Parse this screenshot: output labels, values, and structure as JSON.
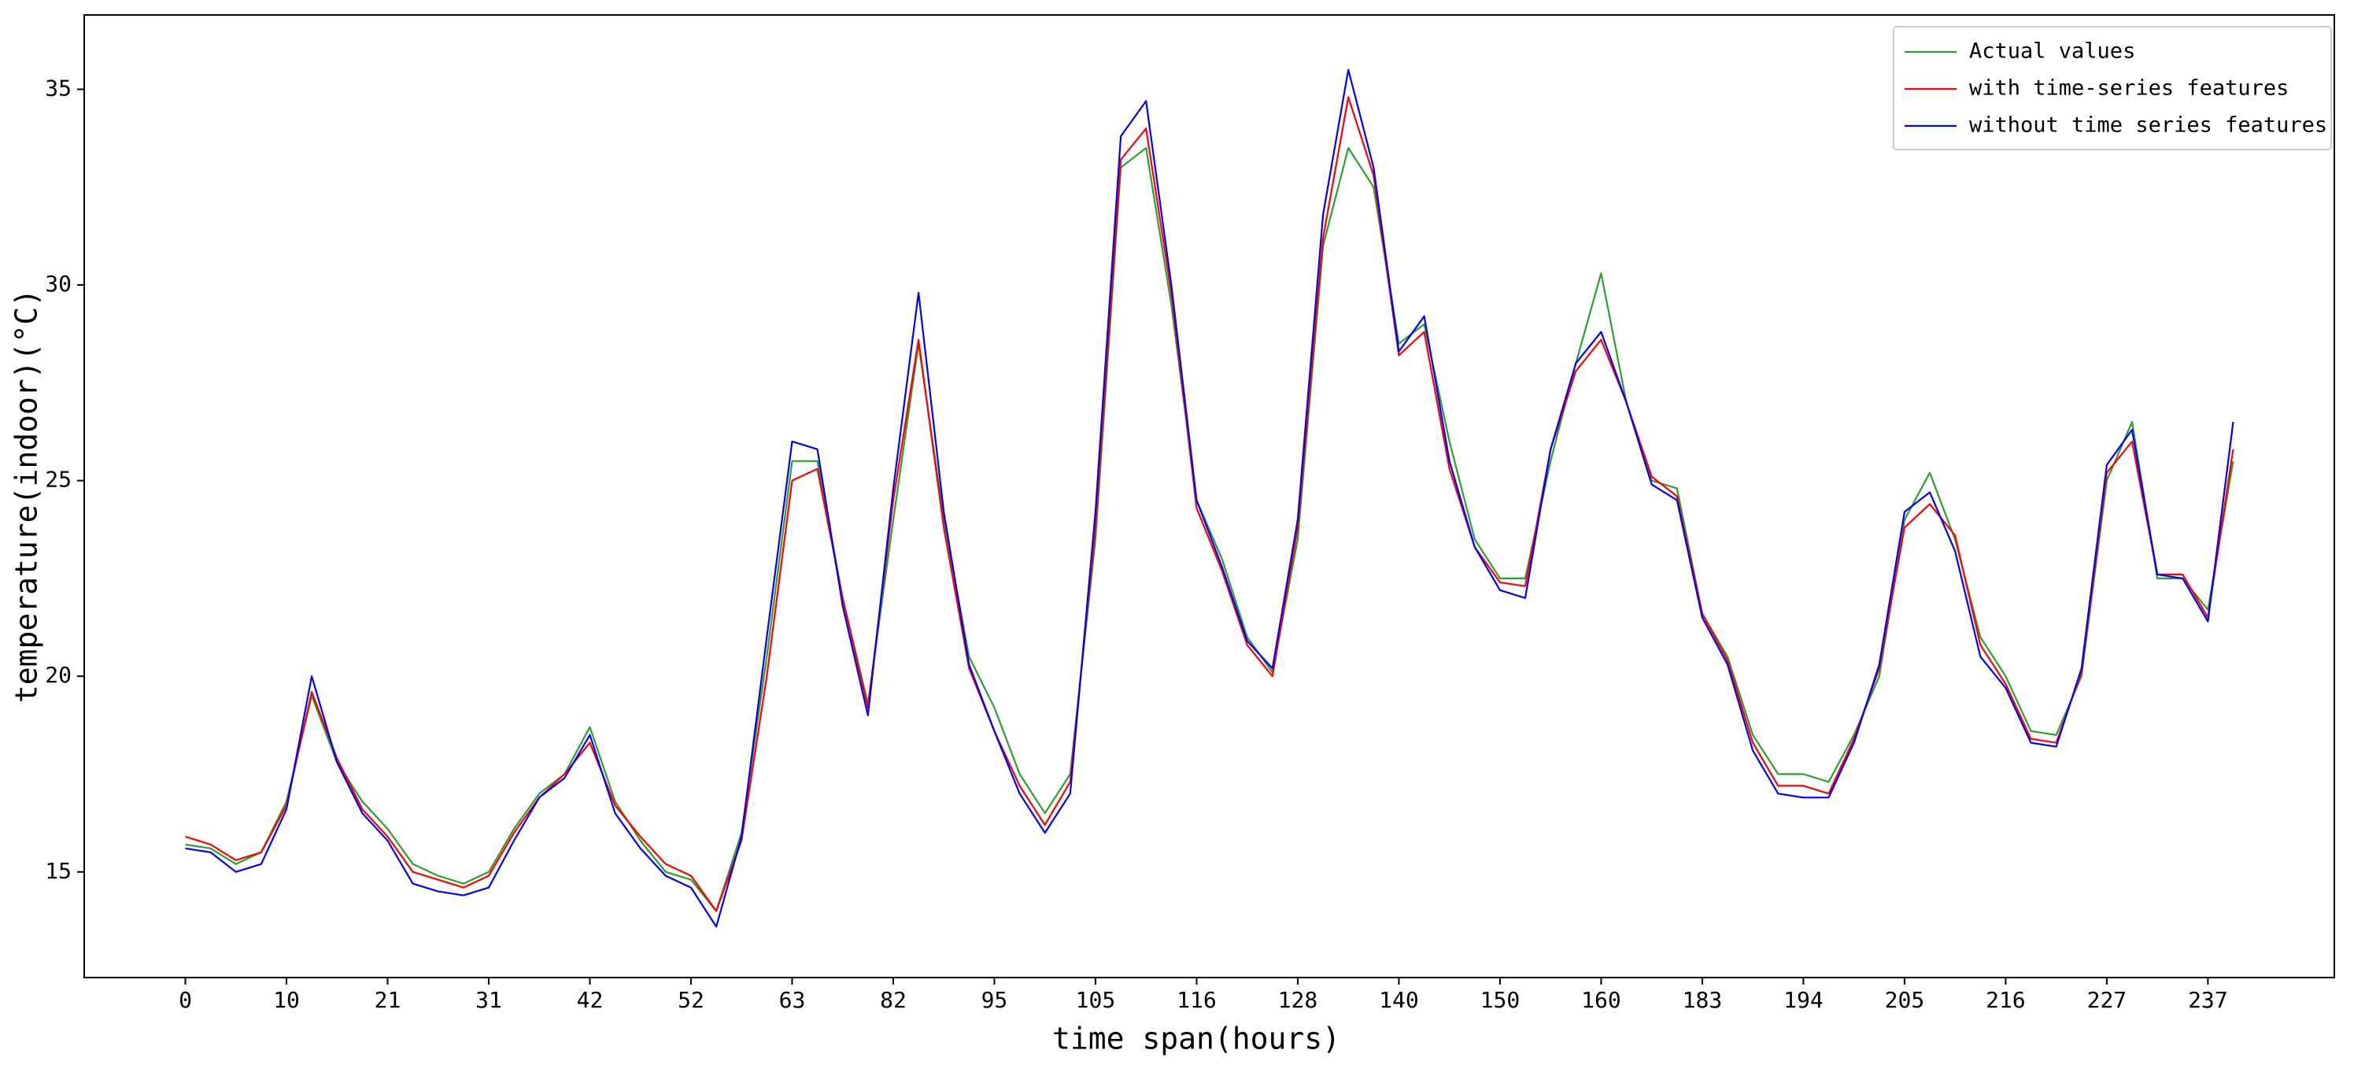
{
  "chart_data": {
    "type": "line",
    "x_label": "time span(hours)",
    "y_label": "temperature(indoor)(°C)",
    "x": [
      0,
      3,
      6,
      9,
      12,
      15,
      18,
      21,
      24,
      27,
      30,
      33,
      36,
      39,
      42,
      45,
      48,
      51,
      54,
      57,
      60,
      63,
      66,
      69,
      72,
      75,
      78,
      81,
      84,
      87,
      90,
      93,
      96,
      99,
      102,
      105,
      108,
      111,
      114,
      117,
      120,
      123,
      126,
      129,
      132,
      135,
      138,
      141,
      144,
      147,
      150,
      153,
      156,
      159,
      162,
      165,
      168,
      171,
      174,
      177,
      180,
      183,
      186,
      189,
      192,
      195,
      198,
      201,
      204,
      207,
      210,
      213,
      216,
      219,
      222,
      225,
      228,
      231,
      234,
      237,
      240,
      243
    ],
    "series": [
      {
        "name": "Actual values",
        "color": "#2ca02c",
        "values": [
          15.7,
          15.6,
          15.2,
          15.5,
          16.8,
          19.5,
          17.8,
          16.8,
          16.1,
          15.2,
          14.9,
          14.7,
          15.0,
          16.1,
          17.0,
          17.5,
          18.7,
          16.8,
          15.8,
          15.0,
          14.8,
          14.0,
          16.0,
          20.5,
          25.5,
          25.5,
          22.0,
          19.3,
          24.0,
          28.5,
          24.0,
          20.5,
          19.2,
          17.5,
          16.5,
          17.5,
          23.5,
          33.0,
          33.5,
          29.5,
          24.5,
          23.0,
          21.0,
          20.1,
          23.5,
          31.0,
          33.5,
          32.5,
          28.5,
          29.0,
          26.0,
          23.5,
          22.5,
          22.5,
          25.5,
          28.0,
          30.3,
          27.0,
          25.0,
          24.8,
          21.6,
          20.5,
          18.5,
          17.5,
          17.5,
          17.3,
          18.5,
          20.0,
          24.0,
          25.2,
          23.5,
          21.0,
          20.0,
          18.6,
          18.5,
          20.0,
          25.0,
          26.5,
          22.5,
          22.5,
          21.7,
          25.5
        ]
      },
      {
        "name": "with time-series features",
        "color": "#ff0000",
        "values": [
          15.9,
          15.7,
          15.3,
          15.5,
          16.7,
          19.6,
          17.9,
          16.6,
          15.9,
          15.0,
          14.8,
          14.6,
          14.9,
          16.0,
          16.9,
          17.5,
          18.3,
          16.7,
          15.9,
          15.2,
          14.9,
          14.0,
          15.8,
          20.0,
          25.0,
          25.3,
          22.0,
          19.2,
          24.5,
          28.6,
          23.8,
          20.2,
          18.6,
          17.2,
          16.2,
          17.3,
          23.8,
          33.2,
          34.0,
          29.8,
          24.3,
          22.7,
          20.8,
          20.0,
          23.8,
          31.2,
          34.8,
          32.8,
          28.2,
          28.8,
          25.3,
          23.3,
          22.4,
          22.3,
          25.8,
          27.8,
          28.6,
          27.0,
          25.1,
          24.6,
          21.6,
          20.4,
          18.3,
          17.2,
          17.2,
          17.0,
          18.4,
          20.2,
          23.8,
          24.4,
          23.6,
          20.8,
          19.8,
          18.4,
          18.3,
          20.1,
          25.2,
          26.0,
          22.6,
          22.6,
          21.5,
          25.8
        ]
      },
      {
        "name": "without time series features",
        "color": "#0000ff",
        "values": [
          15.6,
          15.5,
          15.0,
          15.2,
          16.6,
          20.0,
          17.8,
          16.5,
          15.8,
          14.7,
          14.5,
          14.4,
          14.6,
          15.8,
          16.9,
          17.4,
          18.5,
          16.5,
          15.6,
          14.9,
          14.6,
          13.6,
          15.9,
          21.0,
          26.0,
          25.8,
          21.8,
          19.0,
          24.8,
          29.8,
          24.2,
          20.3,
          18.6,
          17.0,
          16.0,
          17.0,
          24.2,
          33.8,
          34.7,
          30.0,
          24.5,
          22.8,
          20.9,
          20.2,
          24.0,
          31.8,
          35.5,
          33.0,
          28.3,
          29.2,
          25.5,
          23.3,
          22.2,
          22.0,
          25.8,
          28.0,
          28.8,
          27.0,
          24.9,
          24.5,
          21.5,
          20.3,
          18.1,
          17.0,
          16.9,
          16.9,
          18.3,
          20.3,
          24.2,
          24.7,
          23.2,
          20.5,
          19.7,
          18.3,
          18.2,
          20.2,
          25.4,
          26.3,
          22.6,
          22.5,
          21.4,
          26.5
        ]
      }
    ],
    "xlim": [
      -12,
      255
    ],
    "ylim": [
      12.3,
      36.9
    ],
    "xticks": [
      {
        "value": 0,
        "label": "0"
      },
      {
        "value": 12,
        "label": "10"
      },
      {
        "value": 24,
        "label": "21"
      },
      {
        "value": 36,
        "label": "31"
      },
      {
        "value": 48,
        "label": "42"
      },
      {
        "value": 60,
        "label": "52"
      },
      {
        "value": 72,
        "label": "63"
      },
      {
        "value": 84,
        "label": "82"
      },
      {
        "value": 96,
        "label": "95"
      },
      {
        "value": 108,
        "label": "105"
      },
      {
        "value": 120,
        "label": "116"
      },
      {
        "value": 132,
        "label": "128"
      },
      {
        "value": 144,
        "label": "140"
      },
      {
        "value": 156,
        "label": "150"
      },
      {
        "value": 168,
        "label": "160"
      },
      {
        "value": 180,
        "label": "183"
      },
      {
        "value": 192,
        "label": "194"
      },
      {
        "value": 204,
        "label": "205"
      },
      {
        "value": 216,
        "label": "216"
      },
      {
        "value": 228,
        "label": "227"
      },
      {
        "value": 240,
        "label": "237"
      }
    ],
    "yticks": [
      15,
      20,
      25,
      30,
      35
    ],
    "grid": false,
    "legend": "upper right"
  }
}
